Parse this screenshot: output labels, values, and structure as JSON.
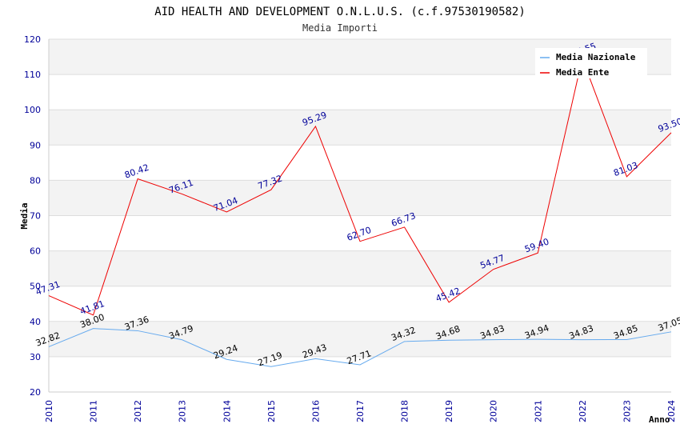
{
  "chart_data": {
    "type": "line",
    "title": "AID HEALTH AND DEVELOPMENT O.N.L.U.S. (c.f.97530190582)",
    "subtitle": "Media Importi",
    "xlabel": "Anno",
    "ylabel": "Media",
    "ylim": [
      20,
      120
    ],
    "yticks": [
      20,
      30,
      40,
      50,
      60,
      70,
      80,
      90,
      100,
      110,
      120
    ],
    "categories": [
      "2010",
      "2011",
      "2012",
      "2013",
      "2014",
      "2015",
      "2016",
      "2017",
      "2018",
      "2019",
      "2020",
      "2021",
      "2022",
      "2023",
      "2024"
    ],
    "series": [
      {
        "name": "Media Nazionale",
        "color": "#66aaee",
        "label_color": "#000000",
        "values": [
          32.82,
          38.0,
          37.36,
          34.79,
          29.24,
          27.19,
          29.43,
          27.71,
          34.32,
          34.68,
          34.83,
          34.94,
          34.83,
          34.85,
          37.05
        ]
      },
      {
        "name": "Media Ente",
        "color": "#ee0000",
        "label_color": "#000099",
        "values": [
          47.31,
          41.81,
          80.42,
          76.11,
          71.04,
          77.32,
          95.29,
          62.7,
          66.73,
          45.42,
          54.77,
          59.4,
          114.55,
          81.03,
          93.5
        ]
      }
    ],
    "legend_position": "top-right",
    "grid": true
  }
}
